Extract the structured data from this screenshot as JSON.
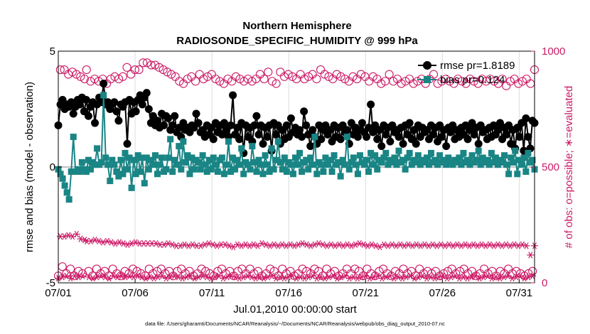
{
  "chart_data": {
    "type": "line",
    "title": "Northern Hemisphere",
    "subtitle": "RADIOSONDE_SPECIFIC_HUMIDITY @ 999 hPa",
    "xlabel": "Jul.01,2010 00:00:00 start",
    "ylabel_left": "rmse and bias (model - observation)",
    "ylabel_right": "# of obs: o=possible; ∗=evaluated",
    "footer": "data file: /Users/gharamti/Documents/NCAR/Reanalysis/~/Documents/NCAR/Reanalysis/webpub/obs_diag_output_2010-07.nc",
    "xlim": [
      1,
      32
    ],
    "ylim_left": [
      -5,
      5
    ],
    "ylim_right": [
      0,
      1000
    ],
    "x_ticks": [
      1,
      6,
      11,
      16,
      21,
      26,
      31
    ],
    "x_tick_labels": [
      "07/01",
      "07/06",
      "07/11",
      "07/16",
      "07/21",
      "07/26",
      "07/31"
    ],
    "y_ticks_left": [
      -5,
      0,
      5
    ],
    "y_tick_labels_left": [
      "-5",
      "0",
      "5"
    ],
    "y_ticks_right": [
      0,
      500,
      1000
    ],
    "y_tick_labels_right": [
      "0",
      "500",
      "1000"
    ],
    "grid": "vertical",
    "legend_position": "top-right",
    "colors": {
      "rmse": "#000000",
      "bias": "#1a8585",
      "obs": "#cc1a66",
      "zero": "#aaaaaa",
      "grid": "#dddddd"
    },
    "series": [
      {
        "name": "rmse pr=1.8189",
        "axis": "left",
        "marker": "circle",
        "values": [
          1.8,
          2.7,
          2.9,
          2.5,
          2.7,
          2.6,
          2.8,
          2.3,
          2.6,
          2.9,
          2.7,
          3.0,
          2.4,
          2.9,
          2.2,
          2.6,
          2.8,
          1.9,
          2.7,
          3.0,
          2.8,
          3.6,
          2.7,
          2.8,
          2.5,
          2.7,
          2.8,
          2.4,
          2.0,
          2.7,
          2.6,
          2.8,
          1.0,
          2.9,
          2.3,
          2.8,
          2.4,
          2.9,
          3.1,
          2.7,
          3.0,
          3.2,
          2.5,
          1.9,
          2.2,
          1.8,
          2.0,
          1.7,
          2.3,
          1.8,
          2.2,
          2.1,
          1.6,
          1.8,
          2.2,
          1.5,
          1.7,
          1.3,
          1.9,
          1.6,
          1.7,
          1.5,
          1.8,
          1.7,
          2.3,
          1.9,
          1.5,
          1.6,
          1.3,
          1.8,
          1.4,
          1.7,
          1.2,
          1.9,
          1.5,
          1.8,
          1.4,
          1.9,
          1.6,
          1.3,
          1.8,
          3.1,
          1.4,
          1.7,
          1.2,
          1.9,
          0.6,
          1.8,
          1.3,
          1.7,
          1.1,
          1.8,
          2.2,
          1.4,
          1.8,
          1.0,
          1.7,
          1.3,
          1.8,
          0.7,
          1.9,
          1.4,
          1.8,
          1.0,
          1.6,
          1.2,
          1.8,
          1.3,
          2.1,
          1.5,
          1.7,
          1.4,
          1.6,
          1.3,
          2.4,
          1.8,
          1.4,
          0.9,
          1.6,
          1.3,
          1.0,
          1.8,
          1.2,
          1.6,
          1.8,
          1.4,
          1.6,
          1.1,
          1.8,
          1.3,
          1.7,
          1.2,
          1.8,
          1.5,
          1.6,
          1.0,
          1.9,
          1.4,
          1.7,
          1.3,
          1.6,
          1.9,
          1.5,
          1.3,
          1.7,
          2.7,
          1.5,
          1.8,
          1.2,
          1.6,
          0.9,
          1.8,
          1.4,
          1.7,
          1.1,
          1.8,
          1.5,
          1.6,
          1.3,
          1.7,
          1.0,
          1.8,
          1.4,
          1.9,
          1.2,
          1.6,
          1.0,
          1.8,
          1.3,
          1.7,
          1.5,
          1.6,
          1.2,
          1.8,
          1.4,
          1.7,
          1.1,
          1.8,
          1.3,
          1.6,
          0.9,
          1.7,
          1.5,
          1.8,
          1.2,
          1.6,
          1.3,
          1.7,
          1.4,
          1.8,
          1.2,
          1.6,
          1.9,
          1.4,
          1.7,
          1.0,
          1.8,
          1.5,
          1.6,
          1.2,
          1.7,
          1.3,
          1.8,
          1.4,
          1.6,
          1.9,
          1.2,
          1.7,
          1.4,
          1.8,
          1.0,
          1.6,
          0.8,
          1.7,
          1.3,
          1.9,
          0.7,
          2.1,
          1.3,
          0.8,
          2.0,
          1.9
        ]
      },
      {
        "name": "bias pr=0.124",
        "axis": "left",
        "marker": "square",
        "values": [
          -0.1,
          -0.3,
          -0.5,
          -0.8,
          -1.1,
          -1.4,
          -0.2,
          1.3,
          -0.2,
          -0.1,
          -0.2,
          0.2,
          -0.1,
          -0.2,
          0.3,
          -0.1,
          0.2,
          0.1,
          0.8,
          0.1,
          0.2,
          3.1,
          0.4,
          0.1,
          -0.6,
          0.3,
          0.1,
          -0.2,
          -0.4,
          0.3,
          -0.3,
          0.6,
          -0.1,
          0.4,
          -0.9,
          0.3,
          -0.3,
          0.5,
          -0.2,
          0.4,
          -0.7,
          0.4,
          -0.1,
          0.3,
          0.1,
          0.5,
          -0.3,
          0.1,
          0.4,
          -0.2,
          -0.1,
          0.4,
          1.2,
          -0.2,
          0.3,
          0.1,
          0.9,
          -0.1,
          1.1,
          0.2,
          0.5,
          -0.3,
          0.4,
          -0.1,
          0.3,
          0.2,
          -0.1,
          0.5,
          0.1,
          -0.2,
          0.3,
          -0.1,
          0.4,
          0.1,
          -0.2,
          0.3,
          0.4,
          -0.3,
          0.1,
          1.1,
          -0.2,
          0.4,
          -0.1,
          0.3,
          0.1,
          0.8,
          -0.3,
          0.2,
          0.1,
          -0.1,
          0.9,
          0.2,
          -0.2,
          0.3,
          0.1,
          -0.3,
          0.5,
          0.1,
          -0.2,
          0.8,
          -0.1,
          0.3,
          1.1,
          0.2,
          -0.1,
          0.4,
          -0.2,
          0.2,
          0.1,
          -0.3,
          0.4,
          0.1,
          0.6,
          -0.2,
          0.2,
          0.3,
          -0.1,
          0.4,
          0.1,
          1.3,
          -0.3,
          0.2,
          0.1,
          -0.2,
          0.4,
          0.1,
          0.3,
          -0.2,
          0.5,
          0.1,
          0.2,
          -0.4,
          0.3,
          0.1,
          1.3,
          -0.1,
          0.2,
          0.4,
          0.1,
          -0.3,
          0.5,
          0.2,
          0.1,
          0.3,
          -0.2,
          0.6,
          0.1,
          0.5,
          -0.1,
          0.3,
          0.2,
          0.4,
          0.6,
          0.1,
          0.3,
          0.2,
          0.4,
          0.1,
          0.7,
          0.2,
          0.3,
          -0.1,
          0.4,
          0.6,
          0.1,
          0.3,
          0.2,
          0.5,
          0.1,
          0.3,
          0.2,
          0.4,
          0.1,
          0.6,
          0.2,
          0.3,
          0.1,
          0.5,
          0.2,
          0.3,
          0.1,
          0.4,
          0.2,
          0.1,
          0.3,
          0.2,
          0.4,
          0.1,
          0.6,
          0.2,
          0.3,
          0.1,
          0.5,
          0.2,
          0.3,
          0.7,
          0.1,
          0.4,
          0.2,
          0.3,
          0.1,
          0.6,
          0.2,
          0.4,
          0.1,
          0.3,
          0.2,
          0.5,
          0.1,
          -0.3,
          0.4,
          0.2,
          0.7,
          -0.3,
          0.3,
          0.1,
          0.4,
          -0.2,
          0.6,
          0.2,
          0.3,
          -0.1
        ]
      },
      {
        "name": "obs possible",
        "axis": "right",
        "marker": "open-circle",
        "values": [
          30,
          920,
          70,
          920,
          40,
          900,
          60,
          910,
          30,
          900,
          50,
          890,
          40,
          880,
          920,
          50,
          870,
          30,
          880,
          60,
          870,
          40,
          880,
          50,
          860,
          30,
          880,
          60,
          890,
          40,
          880,
          30,
          890,
          50,
          930,
          40,
          900,
          60,
          920,
          50,
          920,
          40,
          950,
          30,
          950,
          60,
          940,
          40,
          940,
          50,
          930,
          60,
          920,
          40,
          910,
          50,
          900,
          30,
          890,
          50,
          870,
          60,
          860,
          40,
          880,
          50,
          890,
          30,
          870,
          40,
          900,
          60,
          880,
          50,
          890,
          40,
          900,
          30,
          880,
          50,
          870,
          60,
          860,
          40,
          880,
          50,
          870,
          30,
          890,
          50,
          880,
          60,
          870,
          40,
          880,
          60,
          870,
          40,
          880,
          50,
          900,
          30,
          880,
          40,
          910,
          60,
          870,
          50,
          860,
          30,
          910,
          60,
          890,
          40,
          900,
          50,
          890,
          30,
          880,
          40,
          900,
          60,
          880,
          50,
          890,
          40,
          900,
          60,
          880,
          50,
          920,
          30,
          900,
          60,
          890,
          40,
          880,
          50,
          900,
          30,
          890,
          40,
          880,
          60,
          870,
          40,
          890,
          60,
          880,
          50,
          900,
          30,
          890,
          60,
          870,
          40,
          890,
          30,
          880,
          50,
          860,
          60,
          870,
          40,
          900,
          30,
          870,
          50,
          880,
          40,
          860,
          60,
          870,
          40,
          880,
          50,
          860,
          30,
          870,
          60,
          880,
          40,
          860,
          50,
          880,
          40,
          900,
          50,
          860,
          30,
          870,
          40,
          880,
          50,
          870,
          60,
          860,
          40,
          880,
          50,
          870,
          60,
          860,
          40,
          880,
          50,
          870,
          30,
          860,
          40,
          880,
          60,
          870,
          40,
          880,
          50,
          870,
          30,
          860,
          50,
          880,
          40,
          850,
          60,
          870,
          40,
          880,
          50,
          860,
          40,
          870,
          30,
          880,
          40,
          860,
          50,
          920
        ]
      },
      {
        "name": "obs evaluated",
        "axis": "right",
        "marker": "asterisk",
        "values": [
          20,
          200,
          25,
          200,
          30,
          205,
          20,
          200,
          30,
          210,
          25,
          190,
          30,
          185,
          180,
          25,
          180,
          20,
          185,
          25,
          180,
          30,
          175,
          25,
          180,
          20,
          175,
          30,
          170,
          25,
          175,
          30,
          170,
          25,
          165,
          30,
          170,
          25,
          175,
          30,
          170,
          25,
          170,
          20,
          170,
          25,
          170,
          20,
          170,
          25,
          165,
          30,
          165,
          20,
          170,
          25,
          165,
          30,
          160,
          25,
          160,
          20,
          165,
          25,
          160,
          30,
          165,
          20,
          160,
          25,
          160,
          30,
          165,
          25,
          170,
          20,
          165,
          25,
          160,
          30,
          165,
          20,
          165,
          25,
          160,
          30,
          155,
          25,
          165,
          20,
          160,
          25,
          165,
          30,
          160,
          25,
          165,
          20,
          160,
          25,
          170,
          20,
          165,
          25,
          160,
          30,
          165,
          20,
          160,
          25,
          165,
          20,
          160,
          25,
          165,
          30,
          160,
          20,
          165,
          25,
          170,
          20,
          165,
          25,
          160,
          30,
          165,
          20,
          170,
          25,
          165,
          20,
          160,
          25,
          165,
          30,
          160,
          20,
          165,
          25,
          160,
          30,
          165,
          20,
          160,
          25,
          165,
          20,
          170,
          25,
          165,
          30,
          160,
          20,
          165,
          25,
          160,
          30,
          155,
          20,
          165,
          25,
          160,
          30,
          165,
          20,
          160,
          25,
          165,
          20,
          160,
          25,
          165,
          30,
          160,
          20,
          165,
          25,
          160,
          30,
          165,
          20,
          160,
          25,
          165,
          20,
          160,
          25,
          165,
          30,
          160,
          20,
          165,
          25,
          160,
          30,
          165,
          20,
          160,
          25,
          165,
          20,
          160,
          25,
          165,
          30,
          160,
          20,
          165,
          25,
          160,
          30,
          165,
          20,
          160,
          25,
          165,
          20,
          160,
          25,
          165,
          30,
          160,
          20,
          165,
          25,
          160,
          30,
          165,
          20,
          160,
          25,
          120,
          30,
          160
        ]
      }
    ]
  }
}
